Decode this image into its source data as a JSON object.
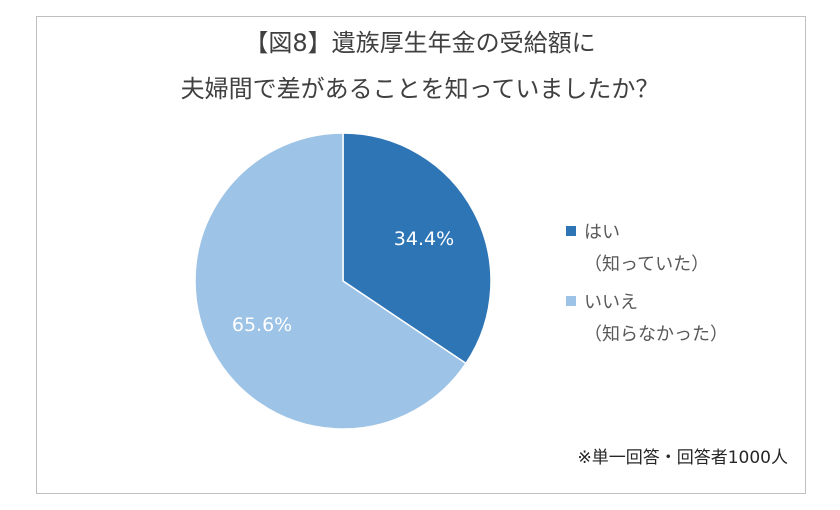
{
  "title_lines": [
    "【図8】遺族厚生年金の受給額に",
    "夫婦間で差があることを知っていましたか？"
  ],
  "note": "※単一回答・回答者1000人",
  "colors": {
    "series1": "#2e75b6",
    "series2": "#9dc3e6"
  },
  "chart_data": {
    "type": "pie",
    "title": "【図8】遺族厚生年金の受給額に 夫婦間で差があることを知っていましたか？",
    "labels": [
      "はい（知っていた）",
      "いいえ（知らなかった）"
    ],
    "values": [
      34.4,
      65.6
    ],
    "data_labels": [
      "34.4%",
      "65.6%"
    ],
    "legend_placement": "right",
    "legend": [
      {
        "label": "はい",
        "sub": "（知っていた）"
      },
      {
        "label": "いいえ",
        "sub": "（知らなかった）"
      }
    ]
  }
}
